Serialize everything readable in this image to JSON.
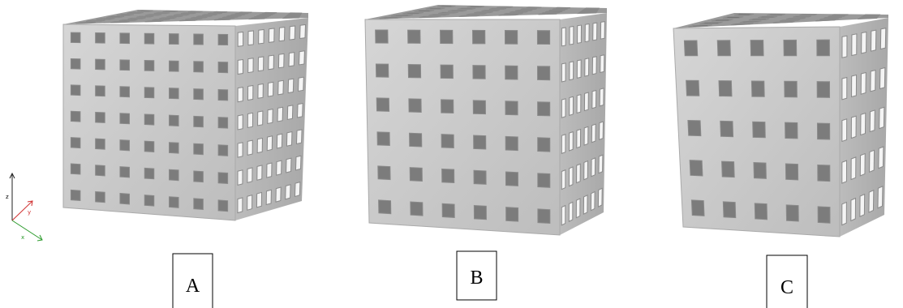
{
  "panels": [
    {
      "label": "A"
    },
    {
      "label": "B"
    },
    {
      "label": "C"
    }
  ],
  "axes": {
    "z": "z",
    "y": "y",
    "x": "x"
  }
}
